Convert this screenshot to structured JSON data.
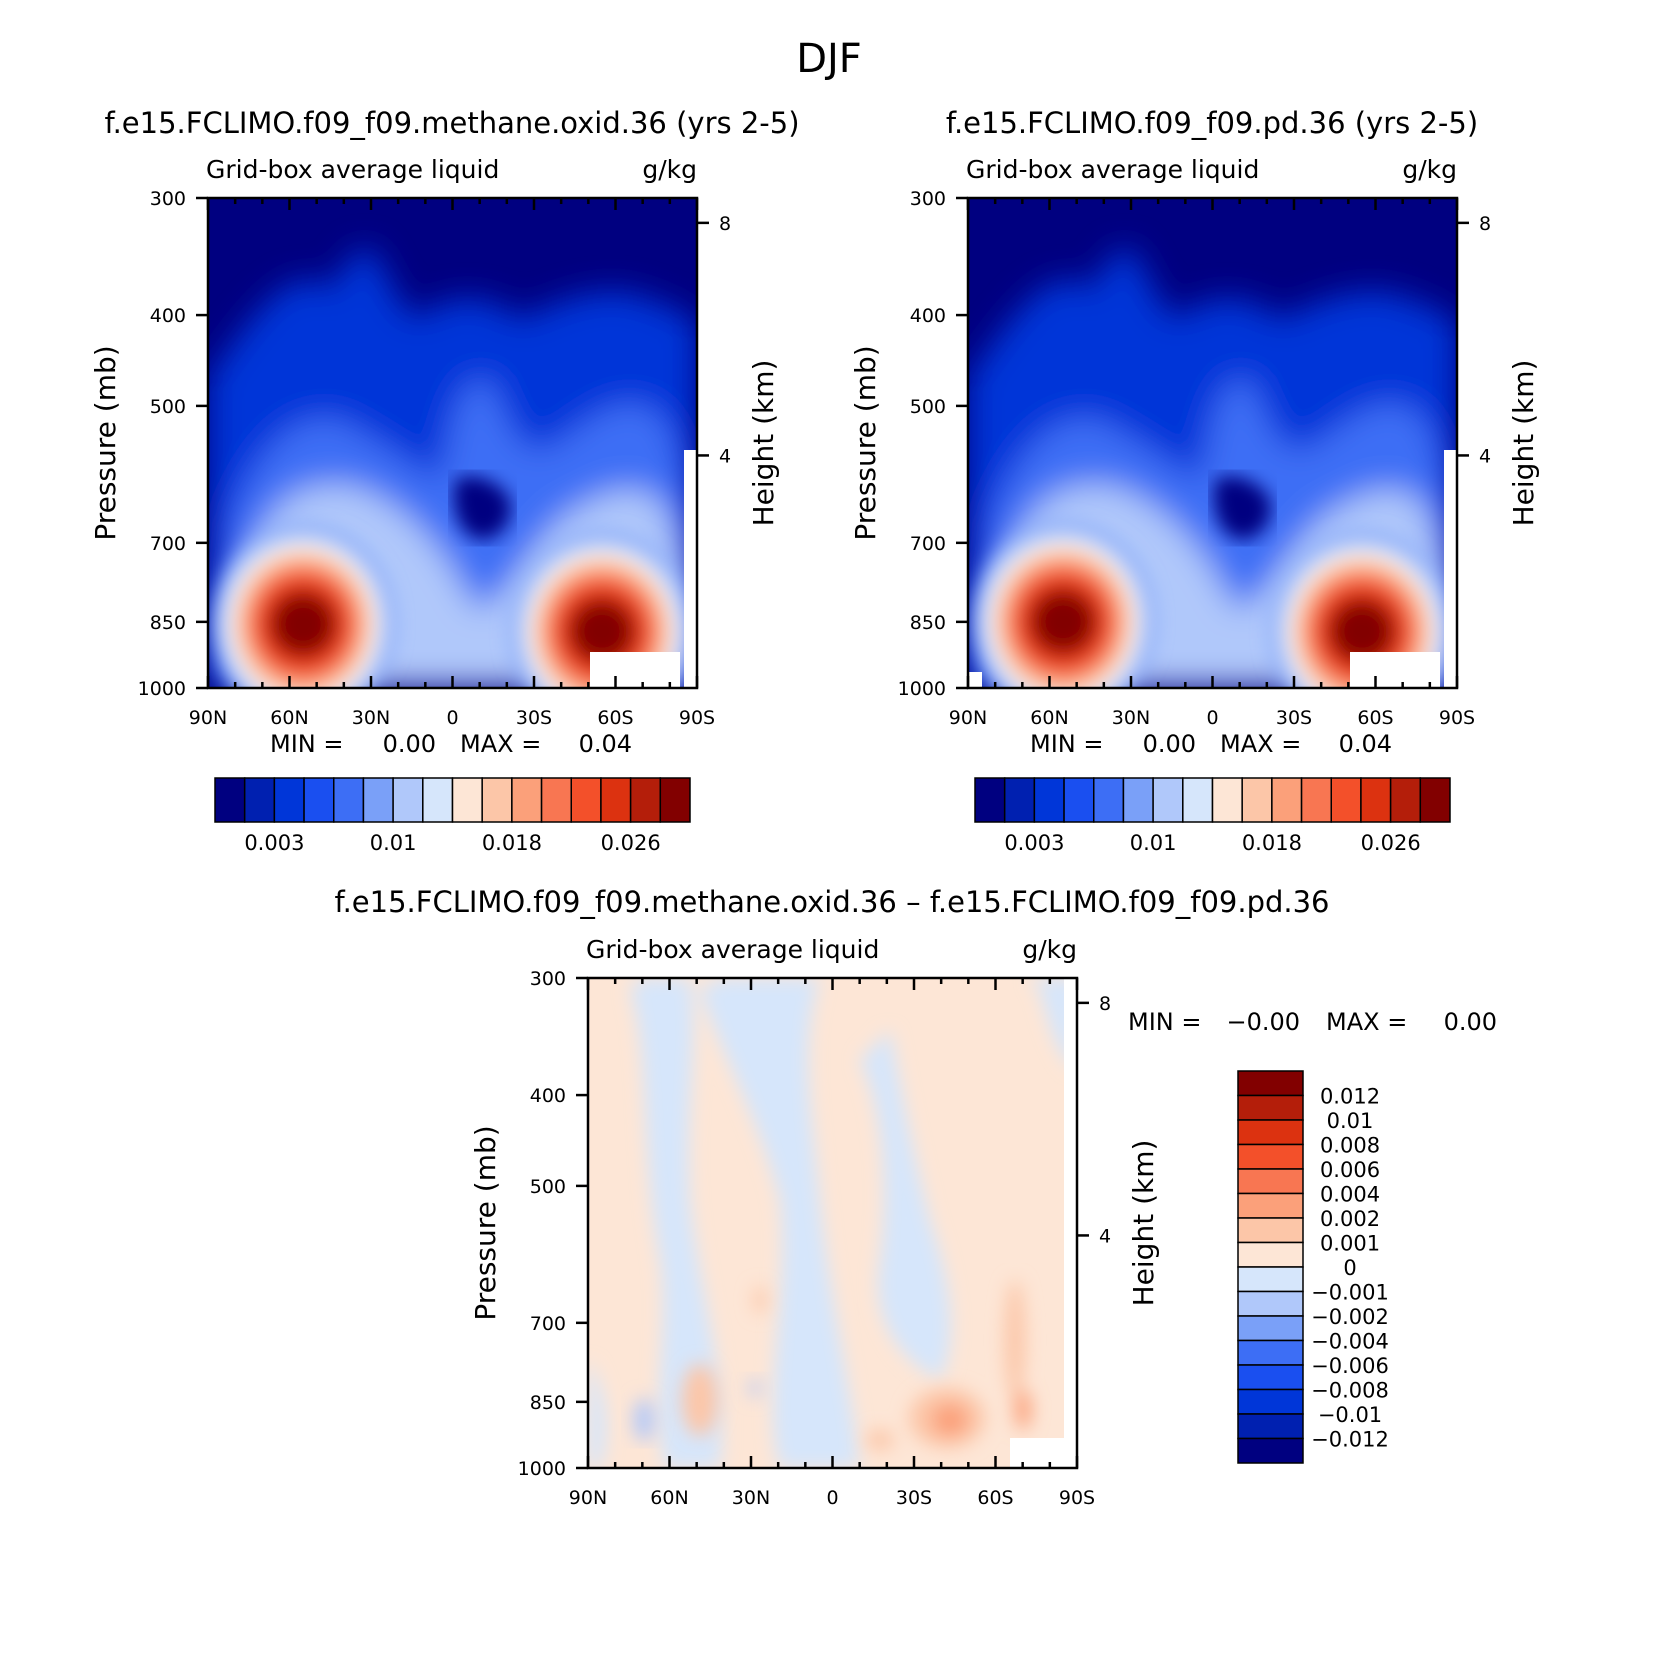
{
  "figure": {
    "title": "DJF"
  },
  "chart_data": [
    {
      "type": "heatmap",
      "id": "top-left",
      "title": "f.e15.FCLIMO.f09_f09.methane.oxid.36 (yrs 2-5)",
      "variable": "Grid-box average liquid",
      "units": "g/kg",
      "ylabel": "Pressure (mb)",
      "ylabel_right": "Height (km)",
      "x_ticks": [
        "90N",
        "60N",
        "30N",
        "0",
        "30S",
        "60S",
        "90S"
      ],
      "y_ticks": [
        "300",
        "400",
        "500",
        "700",
        "850",
        "1000"
      ],
      "y_ticks_right": [
        "8",
        "4"
      ],
      "xlim": [
        "90N",
        "90S"
      ],
      "ylim": [
        1000,
        300
      ],
      "min_label": "MIN =",
      "min_value": "0.00",
      "max_label": "MAX =",
      "max_value": "0.04",
      "colorbar_labels": [
        "0.003",
        "0.01",
        "0.018",
        "0.026"
      ],
      "colorbar_colors": [
        "#000080",
        "#0020b0",
        "#0036d8",
        "#1a4ff0",
        "#3d6ef5",
        "#7aa0f8",
        "#b0c8fa",
        "#d6e6fb",
        "#fde6d6",
        "#fcc6a8",
        "#fba07a",
        "#f87652",
        "#f3502a",
        "#dc3210",
        "#b41e0a",
        "#820000"
      ],
      "blobs": [
        {
          "lat": 55,
          "p": 855,
          "level": 15
        },
        {
          "lat": -55,
          "p": 870,
          "level": 15
        },
        {
          "lat": 5,
          "p": 520,
          "level": 4
        }
      ]
    },
    {
      "type": "heatmap",
      "id": "top-right",
      "title": "f.e15.FCLIMO.f09_f09.pd.36 (yrs 2-5)",
      "variable": "Grid-box average liquid",
      "units": "g/kg",
      "ylabel": "Pressure (mb)",
      "ylabel_right": "Height (km)",
      "x_ticks": [
        "90N",
        "60N",
        "30N",
        "0",
        "30S",
        "60S",
        "90S"
      ],
      "y_ticks": [
        "300",
        "400",
        "500",
        "700",
        "850",
        "1000"
      ],
      "y_ticks_right": [
        "8",
        "4"
      ],
      "xlim": [
        "90N",
        "90S"
      ],
      "ylim": [
        1000,
        300
      ],
      "min_label": "MIN =",
      "min_value": "0.00",
      "max_label": "MAX =",
      "max_value": "0.04",
      "colorbar_labels": [
        "0.003",
        "0.01",
        "0.018",
        "0.026"
      ],
      "colorbar_colors": [
        "#000080",
        "#0020b0",
        "#0036d8",
        "#1a4ff0",
        "#3d6ef5",
        "#7aa0f8",
        "#b0c8fa",
        "#d6e6fb",
        "#fde6d6",
        "#fcc6a8",
        "#fba07a",
        "#f87652",
        "#f3502a",
        "#dc3210",
        "#b41e0a",
        "#820000"
      ],
      "blobs": [
        {
          "lat": 55,
          "p": 850,
          "level": 15
        },
        {
          "lat": -55,
          "p": 870,
          "level": 15
        },
        {
          "lat": 5,
          "p": 520,
          "level": 4
        }
      ]
    },
    {
      "type": "heatmap",
      "id": "difference",
      "title": "f.e15.FCLIMO.f09_f09.methane.oxid.36 – f.e15.FCLIMO.f09_f09.pd.36",
      "variable": "Grid-box average liquid",
      "units": "g/kg",
      "ylabel": "Pressure (mb)",
      "ylabel_right": "Height (km)",
      "x_ticks": [
        "90N",
        "60N",
        "30N",
        "0",
        "30S",
        "60S",
        "90S"
      ],
      "y_ticks": [
        "300",
        "400",
        "500",
        "700",
        "850",
        "1000"
      ],
      "y_ticks_right": [
        "8",
        "4"
      ],
      "xlim": [
        "90N",
        "90S"
      ],
      "ylim": [
        1000,
        300
      ],
      "min_label": "MIN =",
      "min_value": "−0.00",
      "max_label": "MAX =",
      "max_value": "0.00",
      "colorbar_labels": [
        "0.012",
        "0.01",
        "0.008",
        "0.006",
        "0.004",
        "0.002",
        "0.001",
        "0",
        "−0.001",
        "−0.002",
        "−0.004",
        "−0.006",
        "−0.008",
        "−0.01",
        "−0.012"
      ],
      "colorbar_colors": [
        "#820000",
        "#b41e0a",
        "#dc3210",
        "#f3502a",
        "#f87652",
        "#fba07a",
        "#fcc6a8",
        "#fde6d6",
        "#d6e6fb",
        "#b0c8fa",
        "#7aa0f8",
        "#3d6ef5",
        "#1a4ff0",
        "#0036d8",
        "#0020b0",
        "#000080"
      ]
    }
  ]
}
